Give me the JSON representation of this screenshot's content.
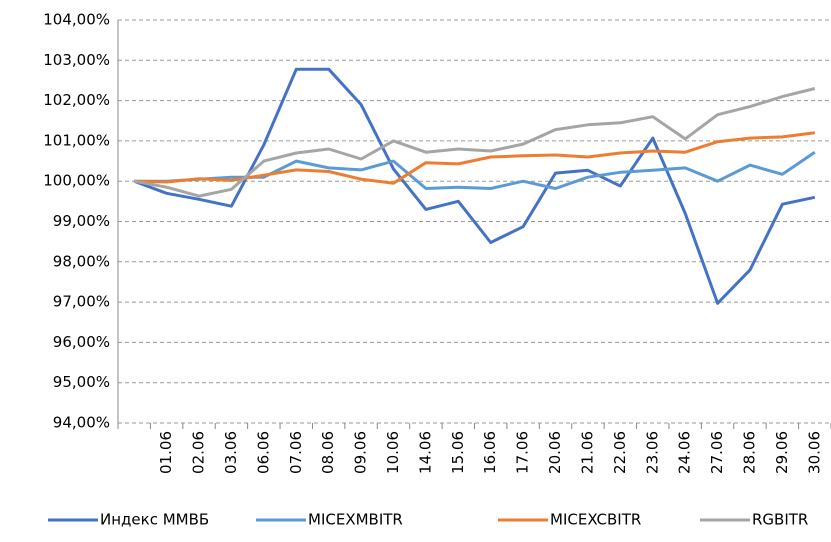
{
  "chart_data": {
    "type": "line",
    "categories": [
      null,
      "01.06",
      "02.06",
      "03.06",
      "06.06",
      "07.06",
      "08.06",
      "09.06",
      "10.06",
      "14.06",
      "15.06",
      "16.06",
      "17.06",
      "20.06",
      "21.06",
      "22.06",
      "23.06",
      "24.06",
      "27.06",
      "28.06",
      "29.06",
      "30.06"
    ],
    "series": [
      {
        "name": "Индекс ММВБ",
        "color": "#4472c4",
        "values": [
          100,
          99.7,
          99.55,
          99.38,
          100.9,
          102.78,
          102.78,
          101.9,
          100.3,
          99.3,
          99.5,
          98.48,
          98.87,
          100.2,
          100.27,
          99.88,
          101.07,
          99.2,
          96.97,
          97.8,
          99.43,
          99.6
        ]
      },
      {
        "name": "MICEXMBITR",
        "color": "#5b9bd5",
        "values": [
          100,
          100,
          100.05,
          100.1,
          100.1,
          100.5,
          100.33,
          100.28,
          100.5,
          99.82,
          99.85,
          99.82,
          100,
          99.82,
          100.1,
          100.22,
          100.27,
          100.33,
          100,
          100.4,
          100.17,
          100.72
        ]
      },
      {
        "name": "MICEXCBITR",
        "color": "#ed7d31",
        "values": [
          100,
          99.98,
          100.06,
          100.02,
          100.15,
          100.28,
          100.24,
          100.05,
          99.95,
          100.46,
          100.43,
          100.6,
          100.63,
          100.65,
          100.6,
          100.7,
          100.75,
          100.72,
          100.98,
          101.07,
          101.1,
          101.2
        ]
      },
      {
        "name": "RGBITR",
        "color": "#a5a5a5",
        "values": [
          100,
          99.85,
          99.63,
          99.8,
          100.5,
          100.7,
          100.8,
          100.55,
          101,
          100.72,
          100.8,
          100.75,
          100.92,
          101.28,
          101.4,
          101.45,
          101.6,
          101.05,
          101.65,
          101.85,
          102.1,
          102.3
        ]
      }
    ],
    "ylim": [
      94,
      104
    ],
    "yticks": [
      {
        "value": 94,
        "label": "94,00%"
      },
      {
        "value": 95,
        "label": "95,00%"
      },
      {
        "value": 96,
        "label": "96,00%"
      },
      {
        "value": 97,
        "label": "97,00%"
      },
      {
        "value": 98,
        "label": "98,00%"
      },
      {
        "value": 99,
        "label": "99,00%"
      },
      {
        "value": 100,
        "label": "100,00%"
      },
      {
        "value": 101,
        "label": "101,00%"
      },
      {
        "value": 102,
        "label": "102,00%"
      },
      {
        "value": 103,
        "label": "103,00%"
      },
      {
        "value": 104,
        "label": "104,00%"
      }
    ],
    "grid": true,
    "legend": "bottom"
  }
}
